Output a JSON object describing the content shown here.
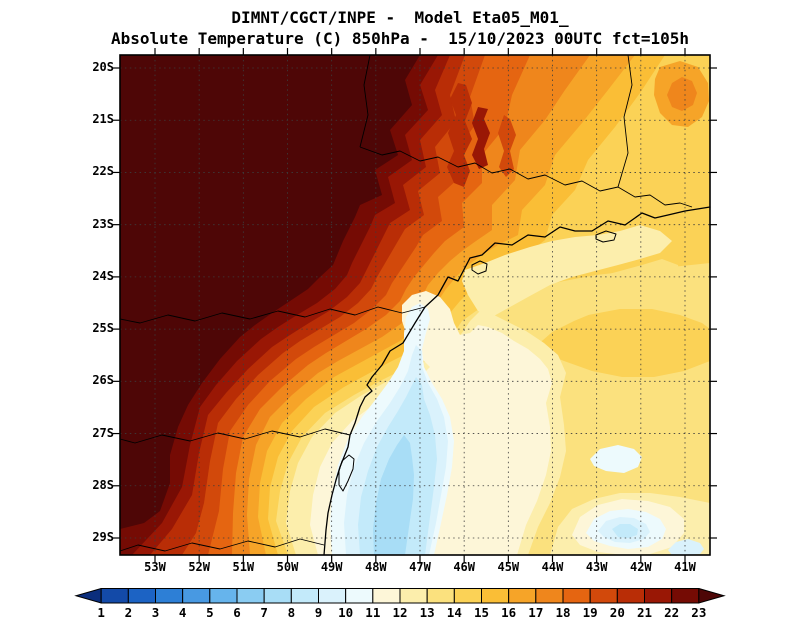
{
  "title": {
    "line1": "DIMNT/CGCT/INPE -  Model Eta05_M01_",
    "line2": "Absolute Temperature (C) 850hPa -  15/10/2023 00UTC fct=105h"
  },
  "axes": {
    "lat_labels": [
      "20S",
      "21S",
      "22S",
      "23S",
      "24S",
      "25S",
      "26S",
      "27S",
      "28S",
      "29S"
    ],
    "lon_labels": [
      "53W",
      "52W",
      "51W",
      "50W",
      "49W",
      "48W",
      "47W",
      "46W",
      "45W",
      "44W",
      "43W",
      "42W",
      "41W"
    ]
  },
  "colorbar": {
    "labels": [
      "1",
      "2",
      "3",
      "4",
      "5",
      "6",
      "7",
      "8",
      "9",
      "10",
      "11",
      "12",
      "13",
      "14",
      "15",
      "16",
      "17",
      "18",
      "19",
      "20",
      "21",
      "22",
      "23"
    ],
    "colors": [
      "#0b2e7d",
      "#134aa8",
      "#1c63c4",
      "#2d7fd6",
      "#4899e2",
      "#66b4ec",
      "#8accf2",
      "#a8ddf6",
      "#c3eafa",
      "#daf2fc",
      "#edfafd",
      "#fdf6d8",
      "#fceeac",
      "#fbe17e",
      "#fbd256",
      "#fabe36",
      "#f6a428",
      "#ef861c",
      "#e56511",
      "#d2490b",
      "#b92d06",
      "#991705",
      "#750b04",
      "#4e0606"
    ]
  },
  "colors": {
    "background": "#ffffff",
    "text": "#000000",
    "frame": "#000000",
    "grid": "#3c3c3c",
    "coastline": "#000000"
  },
  "chart_data": {
    "type": "heatmap",
    "title": "DIMNT/CGCT/INPE -  Model Eta05_M01_",
    "subtitle": "Absolute Temperature (C) 850hPa -  15/10/2023 00UTC fct=105h",
    "institution": "DIMNT/CGCT/INPE",
    "model": "Eta05_M01_",
    "variable": "Absolute Temperature",
    "units": "C",
    "level": "850hPa",
    "valid_time": "15/10/2023 00UTC",
    "forecast": "fct=105h",
    "x_axis": {
      "ticks": [
        "53W",
        "52W",
        "51W",
        "50W",
        "49W",
        "48W",
        "47W",
        "46W",
        "45W",
        "44W",
        "43W",
        "42W",
        "41W"
      ]
    },
    "y_axis": {
      "ticks": [
        "20S",
        "21S",
        "22S",
        "23S",
        "24S",
        "25S",
        "26S",
        "27S",
        "28S",
        "29S"
      ]
    },
    "color_scale": {
      "orientation": "horizontal",
      "levels": [
        1,
        2,
        3,
        4,
        5,
        6,
        7,
        8,
        9,
        10,
        11,
        12,
        13,
        14,
        15,
        16,
        17,
        18,
        19,
        20,
        21,
        22,
        23
      ],
      "colors": [
        "#0b2e7d",
        "#134aa8",
        "#1c63c4",
        "#2d7fd6",
        "#4899e2",
        "#66b4ec",
        "#8accf2",
        "#a8ddf6",
        "#c3eafa",
        "#daf2fc",
        "#edfafd",
        "#fdf6d8",
        "#fceeac",
        "#fbe17e",
        "#fbd256",
        "#fabe36",
        "#f6a428",
        "#ef861c",
        "#e56511",
        "#d2490b",
        "#b92d06",
        "#991705",
        "#750b04",
        "#4e0606"
      ]
    },
    "features": [
      "Very warm air (above 22-23 C, dark maroon) fills the northwest quadrant and runs down the western edge",
      "Concentric warm bands (14-22 C, orange to dark red) arc from the top centre down to the bottom left",
      "Mild air (12-15 C, yellow tones) covers most of the eastern half of the domain",
      "A cream band (11-12 C) crosses the centre near 24S-26S",
      "A cool pool (7-10 C, cyan / light blue) lies along the coast near 48W-49W from 26S to 29S",
      "Small cool patches (8-10 C) appear in the far southeast near 42W-43W, 28S-29S"
    ]
  }
}
